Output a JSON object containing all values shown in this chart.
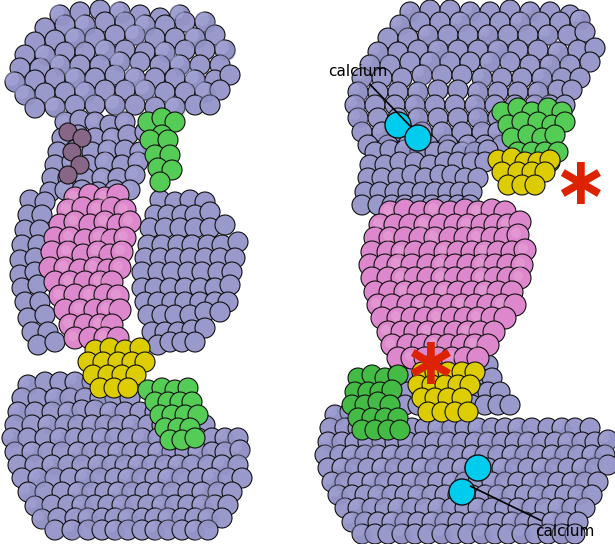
{
  "background_color": "#ffffff",
  "fig_width": 6.15,
  "fig_height": 5.44,
  "dpi": 100,
  "colors": {
    "blue_main": "#9999cc",
    "blue_light": "#aaaadd",
    "blue_dark": "#7777aa",
    "blue_shadow": "#8888bb",
    "green": "#55cc55",
    "green2": "#44bb44",
    "yellow": "#ddcc00",
    "pink": "#dd88cc",
    "pink2": "#cc77bb",
    "purple": "#886688",
    "cyan": "#00ccee",
    "red_star": "#dd2200",
    "outline": "#111111"
  },
  "annotation_fontsize": 11
}
